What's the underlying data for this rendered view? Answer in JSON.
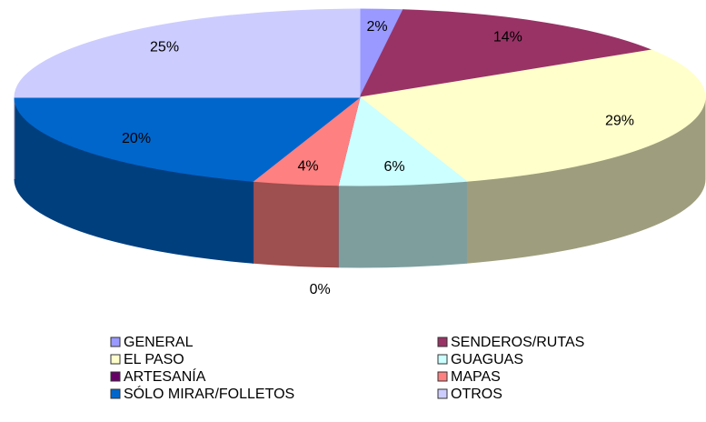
{
  "chart_data": {
    "type": "pie3d",
    "categories": [
      "GENERAL",
      "SENDEROS/RUTAS",
      "EL PASO",
      "GUAGUAS",
      "ARTESANÍA",
      "MAPAS",
      "SÓLO MIRAR/FOLLETOS",
      "OTROS"
    ],
    "values": [
      2,
      14,
      29,
      6,
      0,
      4,
      20,
      25
    ],
    "value_labels": [
      "2%",
      "14%",
      "29%",
      "6%",
      "0%",
      "4%",
      "20%",
      "25%"
    ],
    "colors": [
      "#9999ff",
      "#993366",
      "#ffffcc",
      "#ccffff",
      "#660066",
      "#ff8080",
      "#0066cc",
      "#ccccff"
    ],
    "legend": "bottom"
  }
}
